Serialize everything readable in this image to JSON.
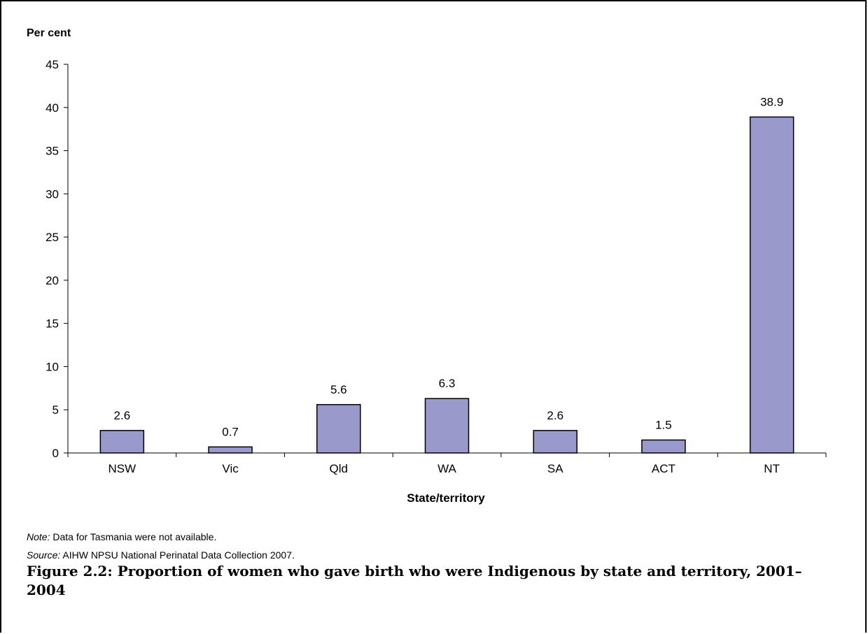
{
  "chart_data": {
    "type": "bar",
    "ylabel": "Per cent",
    "xlabel": "State/territory",
    "categories": [
      "NSW",
      "Vic",
      "Qld",
      "WA",
      "SA",
      "ACT",
      "NT"
    ],
    "values": [
      2.6,
      0.7,
      5.6,
      6.3,
      2.6,
      1.5,
      38.9
    ],
    "data_labels": [
      "2.6",
      "0.7",
      "5.6",
      "6.3",
      "2.6",
      "1.5",
      "38.9"
    ],
    "ylim": [
      0,
      45
    ],
    "yticks": [
      0,
      5,
      10,
      15,
      20,
      25,
      30,
      35,
      40,
      45
    ],
    "grid": false,
    "bar_color": "#9999cc"
  },
  "note": {
    "label": "Note:",
    "text": "Data for Tasmania were not available."
  },
  "source": {
    "label": "Source:",
    "text": "AIHW NPSU National Perinatal Data Collection 2007."
  },
  "caption": "Figure 2.2: Proportion of women who gave birth who were Indigenous by state and territory, 2001–2004"
}
